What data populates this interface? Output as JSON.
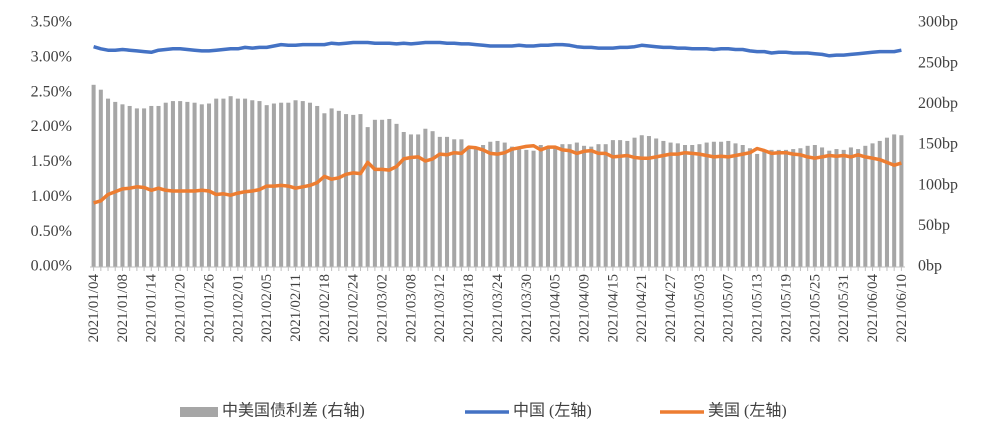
{
  "chart_data": {
    "type": "bar",
    "categories": [
      "2021/01/04",
      null,
      null,
      null,
      "2021/01/08",
      null,
      null,
      null,
      "2021/01/14",
      null,
      null,
      null,
      "2021/01/20",
      null,
      null,
      null,
      "2021/01/26",
      null,
      null,
      null,
      "2021/02/01",
      null,
      null,
      null,
      "2021/02/05",
      null,
      null,
      null,
      "2021/02/11",
      null,
      null,
      null,
      "2021/02/18",
      null,
      null,
      null,
      "2021/02/24",
      null,
      null,
      null,
      "2021/03/02",
      null,
      null,
      null,
      "2021/03/08",
      null,
      null,
      null,
      "2021/03/12",
      null,
      null,
      null,
      "2021/03/18",
      null,
      null,
      null,
      "2021/03/24",
      null,
      null,
      null,
      "2021/03/30",
      null,
      null,
      null,
      "2021/04/05",
      null,
      null,
      null,
      "2021/04/09",
      null,
      null,
      null,
      "2021/04/15",
      null,
      null,
      null,
      "2021/04/21",
      null,
      null,
      null,
      "2021/04/27",
      null,
      null,
      null,
      "2021/05/03",
      null,
      null,
      null,
      "2021/05/07",
      null,
      null,
      null,
      "2021/05/13",
      null,
      null,
      null,
      "2021/05/19",
      null,
      null,
      null,
      "2021/05/25",
      null,
      null,
      null,
      "2021/05/31",
      null,
      null,
      null,
      "2021/06/04",
      null,
      null,
      null,
      "2021/06/10"
    ],
    "series": [
      {
        "name": "中美国债利差 (右轴)",
        "type": "bar",
        "axis": "y2",
        "color": "#a6a6a6",
        "values": [
          224,
          218,
          207,
          203,
          200,
          198,
          195,
          195,
          198,
          198,
          202,
          204,
          204,
          203,
          202,
          200,
          201,
          207,
          207,
          210,
          207,
          207,
          205,
          204,
          199,
          201,
          202,
          202,
          205,
          204,
          202,
          198,
          189,
          195,
          192,
          188,
          187,
          188,
          172,
          181,
          181,
          182,
          176,
          166,
          163,
          163,
          170,
          167,
          160,
          160,
          157,
          157,
          148,
          148,
          150,
          154,
          155,
          153,
          148,
          147,
          144,
          143,
          150,
          146,
          147,
          151,
          151,
          153,
          149,
          148,
          151,
          151,
          156,
          156,
          155,
          159,
          162,
          161,
          158,
          155,
          153,
          152,
          150,
          150,
          151,
          153,
          154,
          154,
          155,
          152,
          150,
          146,
          139,
          142,
          144,
          144,
          144,
          145,
          146,
          149,
          150,
          147,
          143,
          145,
          144,
          147,
          145,
          149,
          152,
          155,
          159,
          163,
          162
        ]
      },
      {
        "name": "中国 (左轴)",
        "type": "line",
        "color": "#4472c4",
        "values": [
          3.16,
          3.13,
          3.11,
          3.11,
          3.12,
          3.11,
          3.1,
          3.09,
          3.08,
          3.11,
          3.12,
          3.13,
          3.13,
          3.12,
          3.11,
          3.1,
          3.1,
          3.11,
          3.12,
          3.13,
          3.13,
          3.15,
          3.14,
          3.15,
          3.15,
          3.17,
          3.19,
          3.18,
          3.18,
          3.19,
          3.19,
          3.19,
          3.19,
          3.21,
          3.2,
          3.21,
          3.22,
          3.22,
          3.22,
          3.21,
          3.21,
          3.21,
          3.2,
          3.21,
          3.2,
          3.21,
          3.22,
          3.22,
          3.22,
          3.21,
          3.21,
          3.2,
          3.2,
          3.19,
          3.18,
          3.17,
          3.17,
          3.17,
          3.17,
          3.18,
          3.17,
          3.17,
          3.18,
          3.18,
          3.19,
          3.19,
          3.18,
          3.16,
          3.15,
          3.15,
          3.14,
          3.14,
          3.14,
          3.15,
          3.15,
          3.16,
          3.18,
          3.17,
          3.16,
          3.15,
          3.15,
          3.14,
          3.14,
          3.13,
          3.13,
          3.13,
          3.12,
          3.13,
          3.13,
          3.12,
          3.12,
          3.1,
          3.09,
          3.09,
          3.07,
          3.08,
          3.08,
          3.07,
          3.07,
          3.07,
          3.06,
          3.05,
          3.03,
          3.04,
          3.04,
          3.05,
          3.06,
          3.07,
          3.08,
          3.09,
          3.09,
          3.09,
          3.11
        ]
      },
      {
        "name": "美国 (左轴)",
        "type": "line",
        "color": "#ed7d31",
        "values": [
          0.92,
          0.95,
          1.04,
          1.08,
          1.12,
          1.13,
          1.15,
          1.14,
          1.1,
          1.13,
          1.1,
          1.09,
          1.09,
          1.09,
          1.09,
          1.1,
          1.09,
          1.04,
          1.05,
          1.03,
          1.06,
          1.08,
          1.09,
          1.11,
          1.16,
          1.16,
          1.17,
          1.16,
          1.13,
          1.15,
          1.17,
          1.21,
          1.3,
          1.26,
          1.28,
          1.33,
          1.35,
          1.34,
          1.5,
          1.4,
          1.4,
          1.39,
          1.44,
          1.55,
          1.57,
          1.58,
          1.52,
          1.55,
          1.62,
          1.61,
          1.64,
          1.63,
          1.72,
          1.71,
          1.68,
          1.63,
          1.62,
          1.64,
          1.69,
          1.71,
          1.73,
          1.74,
          1.68,
          1.72,
          1.72,
          1.68,
          1.67,
          1.63,
          1.66,
          1.67,
          1.63,
          1.63,
          1.58,
          1.59,
          1.6,
          1.57,
          1.56,
          1.56,
          1.58,
          1.6,
          1.62,
          1.62,
          1.64,
          1.63,
          1.62,
          1.6,
          1.58,
          1.59,
          1.58,
          1.6,
          1.62,
          1.64,
          1.7,
          1.67,
          1.63,
          1.64,
          1.64,
          1.62,
          1.61,
          1.58,
          1.56,
          1.58,
          1.6,
          1.59,
          1.6,
          1.58,
          1.61,
          1.58,
          1.56,
          1.54,
          1.5,
          1.46,
          1.49
        ]
      }
    ],
    "ylim": [
      0,
      3.5
    ],
    "yticks": [
      {
        "value": 0,
        "label": "0.00%"
      },
      {
        "value": 0.5,
        "label": "0.50%"
      },
      {
        "value": 1,
        "label": "1.00%"
      },
      {
        "value": 1.5,
        "label": "1.50%"
      },
      {
        "value": 2,
        "label": "2.00%"
      },
      {
        "value": 2.5,
        "label": "2.50%"
      },
      {
        "value": 3,
        "label": "3.00%"
      },
      {
        "value": 3.5,
        "label": "3.50%"
      }
    ],
    "y2lim": [
      0,
      300
    ],
    "y2ticks": [
      {
        "value": 0,
        "label": "0bp"
      },
      {
        "value": 50,
        "label": "50bp"
      },
      {
        "value": 100,
        "label": "100bp"
      },
      {
        "value": 150,
        "label": "150bp"
      },
      {
        "value": 200,
        "label": "200bp"
      },
      {
        "value": 250,
        "label": "250bp"
      },
      {
        "value": 300,
        "label": "300bp"
      }
    ],
    "grid": false,
    "legend": "bottom"
  }
}
